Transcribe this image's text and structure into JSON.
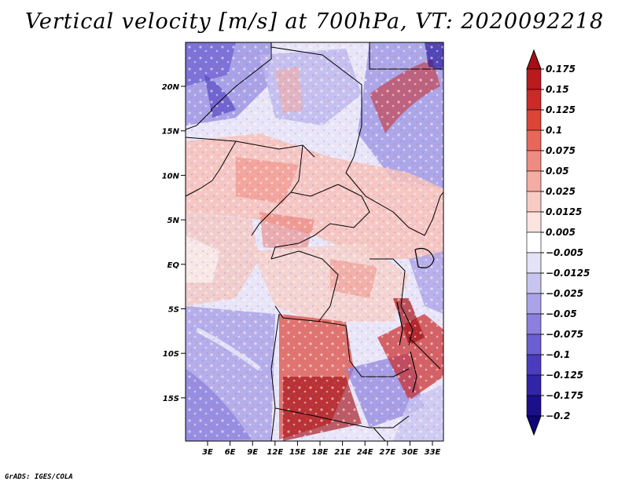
{
  "title": "Vertical velocity [m/s] at 700hPa, VT: 2020092218",
  "footer": "GrADS: IGES/COLA",
  "map": {
    "lat_ticks": [
      "20N",
      "15N",
      "10N",
      "5N",
      "EQ",
      "5S",
      "10S",
      "15S"
    ],
    "lon_ticks": [
      "3E",
      "6E",
      "9E",
      "12E",
      "15E",
      "18E",
      "21E",
      "24E",
      "27E",
      "30E",
      "33E"
    ]
  },
  "colorbar": {
    "levels": [
      "0.175",
      "0.15",
      "0.125",
      "0.1",
      "0.075",
      "0.05",
      "0.025",
      "0.0125",
      "0.005",
      "-0.005",
      "-0.0125",
      "-0.025",
      "-0.05",
      "-0.075",
      "-0.1",
      "-0.125",
      "-0.175",
      "-0.2"
    ],
    "colors": [
      "#a50f15",
      "#b81a1e",
      "#cb2a27",
      "#dd4438",
      "#e8665a",
      "#ef8b80",
      "#f4aca3",
      "#f8cbc4",
      "#fbe3df",
      "#ffffff",
      "#e4e2f7",
      "#c8c4f0",
      "#aba3e8",
      "#8b80dd",
      "#6b5ed0",
      "#4b3cbf",
      "#3224a8",
      "#1c0f8c",
      "#10047a"
    ]
  }
}
